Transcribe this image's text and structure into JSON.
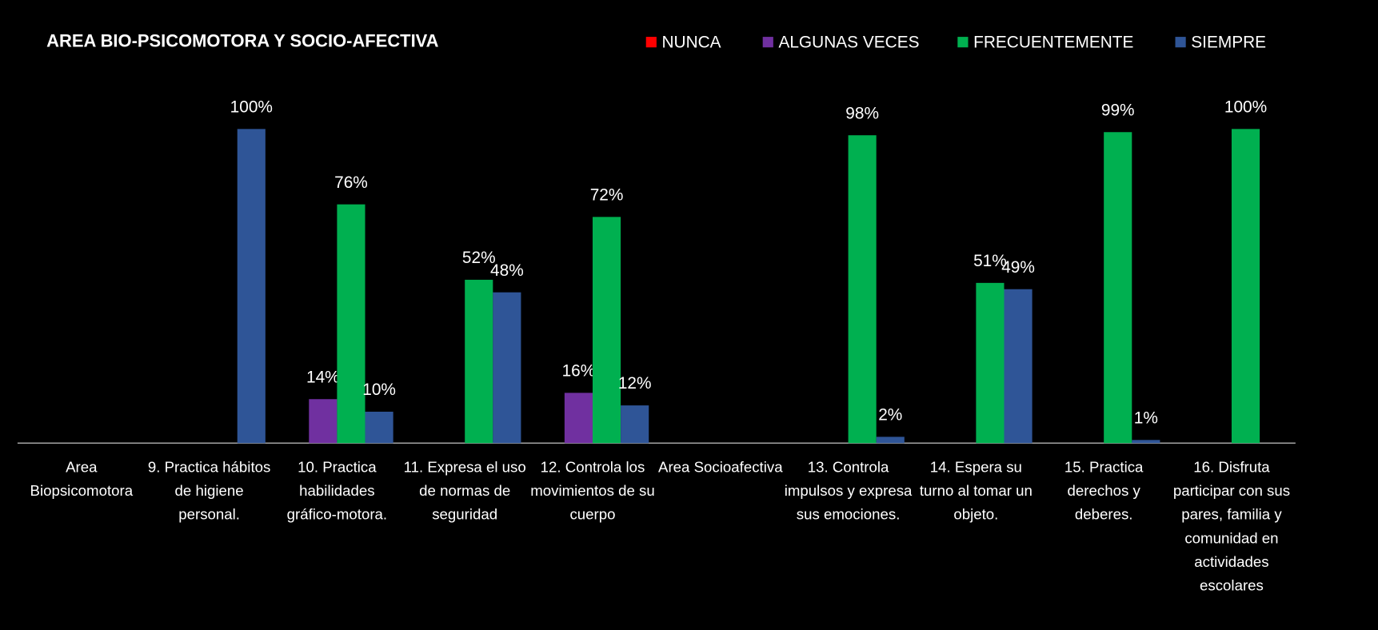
{
  "chart_data": {
    "type": "bar",
    "title": "AREA BIO-PSICOMOTORA Y SOCIO-AFECTIVA",
    "categories": [
      "Area Biopsicomotora",
      "9. Practica hábitos de higiene personal.",
      "10. Practica habilidades gráfico-motora.",
      "11. Expresa el uso de normas de seguridad",
      "12. Controla los movimientos de su cuerpo",
      "Area Socioafectiva",
      "13. Controla impulsos y expresa sus emociones.",
      "14. Espera su turno al tomar un objeto.",
      "15. Practica derechos y deberes.",
      "16. Disfruta participar con sus pares, familia y comunidad en actividades escolares"
    ],
    "series": [
      {
        "name": "NUNCA",
        "color": "#ff0000",
        "values": [
          null,
          null,
          null,
          null,
          null,
          null,
          null,
          null,
          null,
          null
        ],
        "value_labels": [
          null,
          null,
          null,
          null,
          null,
          null,
          null,
          null,
          null,
          null
        ]
      },
      {
        "name": "ALGUNAS VECES",
        "color": "#7030a0",
        "values": [
          null,
          null,
          14,
          null,
          16,
          null,
          null,
          null,
          null,
          null
        ],
        "value_labels": [
          null,
          null,
          "14%",
          null,
          "16%",
          null,
          null,
          null,
          null,
          null
        ]
      },
      {
        "name": "FRECUENTEMENTE",
        "color": "#00b050",
        "values": [
          null,
          null,
          76,
          52,
          72,
          null,
          98,
          51,
          99,
          100
        ],
        "value_labels": [
          null,
          null,
          "76%",
          "52%",
          "72%",
          null,
          "98%",
          "51%",
          "99%",
          "100%"
        ]
      },
      {
        "name": "SIEMPRE",
        "color": "#2f5597",
        "values": [
          null,
          100,
          10,
          48,
          12,
          null,
          2,
          49,
          1,
          null
        ],
        "value_labels": [
          null,
          "100%",
          "10%",
          "48%",
          "12%",
          null,
          "2%",
          "49%",
          "1%",
          null
        ]
      }
    ],
    "ylim": [
      0,
      100
    ],
    "legend": "top"
  }
}
